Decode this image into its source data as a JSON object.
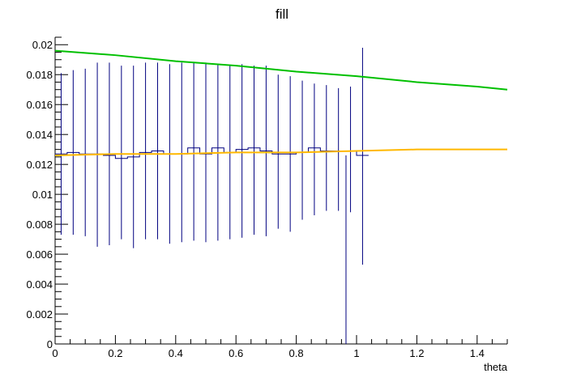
{
  "chart_data": {
    "type": "histogram",
    "title": "fill",
    "xlabel": "theta",
    "ylabel": "",
    "xlim": [
      0,
      1.5
    ],
    "ylim": [
      0,
      0.0205
    ],
    "grid": false,
    "x_ticks": [
      "0",
      "0.2",
      "0.4",
      "0.6",
      "0.8",
      "1",
      "1.2",
      "1.4"
    ],
    "y_ticks": [
      "0",
      "0.002",
      "0.004",
      "0.006",
      "0.008",
      "0.01",
      "0.012",
      "0.014",
      "0.016",
      "0.018",
      "0.02"
    ],
    "x_tick_values": [
      0,
      0.2,
      0.4,
      0.6,
      0.8,
      1.0,
      1.2,
      1.4
    ],
    "y_tick_values": [
      0,
      0.002,
      0.004,
      0.006,
      0.008,
      0.01,
      0.012,
      0.014,
      0.016,
      0.018,
      0.02
    ],
    "histogram": {
      "color": "#000080",
      "bin_width": 0.04,
      "bins": [
        {
          "x": 0.02,
          "value": 0.0127,
          "lo": 0.0073,
          "hi": 0.0181
        },
        {
          "x": 0.06,
          "value": 0.0128,
          "lo": 0.0073,
          "hi": 0.0183
        },
        {
          "x": 0.1,
          "value": 0.0127,
          "lo": 0.0072,
          "hi": 0.0184
        },
        {
          "x": 0.14,
          "value": 0.0127,
          "lo": 0.0065,
          "hi": 0.0188
        },
        {
          "x": 0.18,
          "value": 0.0126,
          "lo": 0.0066,
          "hi": 0.0188
        },
        {
          "x": 0.22,
          "value": 0.0124,
          "lo": 0.007,
          "hi": 0.0186
        },
        {
          "x": 0.26,
          "value": 0.0125,
          "lo": 0.0064,
          "hi": 0.0186
        },
        {
          "x": 0.3,
          "value": 0.0128,
          "lo": 0.007,
          "hi": 0.0188
        },
        {
          "x": 0.34,
          "value": 0.0129,
          "lo": 0.007,
          "hi": 0.0188
        },
        {
          "x": 0.38,
          "value": 0.0127,
          "lo": 0.0067,
          "hi": 0.0187
        },
        {
          "x": 0.42,
          "value": 0.0127,
          "lo": 0.0068,
          "hi": 0.0188
        },
        {
          "x": 0.46,
          "value": 0.0131,
          "lo": 0.0069,
          "hi": 0.0188
        },
        {
          "x": 0.5,
          "value": 0.0127,
          "lo": 0.0068,
          "hi": 0.0188
        },
        {
          "x": 0.54,
          "value": 0.0131,
          "lo": 0.0069,
          "hi": 0.0187
        },
        {
          "x": 0.58,
          "value": 0.0128,
          "lo": 0.007,
          "hi": 0.0186
        },
        {
          "x": 0.62,
          "value": 0.013,
          "lo": 0.0071,
          "hi": 0.0187
        },
        {
          "x": 0.66,
          "value": 0.0131,
          "lo": 0.0073,
          "hi": 0.0186
        },
        {
          "x": 0.7,
          "value": 0.0129,
          "lo": 0.0072,
          "hi": 0.0186
        },
        {
          "x": 0.74,
          "value": 0.0127,
          "lo": 0.0077,
          "hi": 0.018
        },
        {
          "x": 0.78,
          "value": 0.0127,
          "lo": 0.0075,
          "hi": 0.0179
        },
        {
          "x": 0.82,
          "value": 0.0128,
          "lo": 0.0083,
          "hi": 0.0176
        },
        {
          "x": 0.86,
          "value": 0.0131,
          "lo": 0.0086,
          "hi": 0.0174
        },
        {
          "x": 0.9,
          "value": 0.0129,
          "lo": 0.0089,
          "hi": 0.0173
        },
        {
          "x": 0.94,
          "value": 0.0129,
          "lo": 0.0089,
          "hi": 0.0171
        },
        {
          "x": 0.98,
          "value": 0.0129,
          "lo": 0.0088,
          "hi": 0.0172
        },
        {
          "x": 1.02,
          "value": 0.0126,
          "lo": 0.0053,
          "hi": 0.0198
        }
      ]
    },
    "series": [
      {
        "type": "line",
        "color": "#00c000",
        "x": [
          0,
          0.2,
          0.4,
          0.6,
          0.8,
          1.0,
          1.2,
          1.4,
          1.5
        ],
        "y": [
          0.0196,
          0.0193,
          0.0189,
          0.0186,
          0.0182,
          0.0179,
          0.0175,
          0.0172,
          0.017
        ]
      },
      {
        "type": "line",
        "color": "#ffb800",
        "x": [
          0,
          0.2,
          0.4,
          0.6,
          0.8,
          1.0,
          1.2,
          1.4,
          1.5
        ],
        "y": [
          0.0126,
          0.0127,
          0.0127,
          0.0128,
          0.0128,
          0.0129,
          0.013,
          0.013,
          0.013
        ]
      }
    ],
    "cutoff": {
      "x": 0.965,
      "lo": 0,
      "hi": 0.0126,
      "color": "#000080"
    }
  }
}
